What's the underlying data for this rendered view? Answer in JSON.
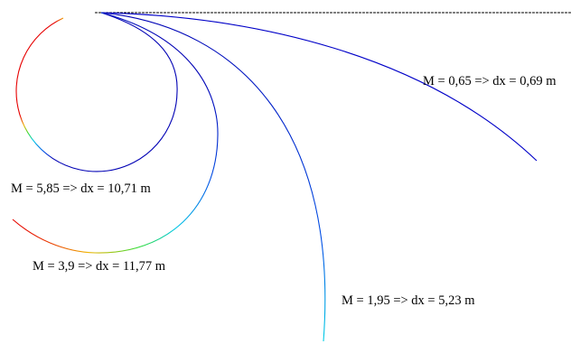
{
  "labels": {
    "curve_065": "M = 0,65 => dx = 0,69 m",
    "curve_585": "M = 5,85 => dx = 10,71 m",
    "curve_39": "M = 3,9 => dx = 11,77 m",
    "curve_195": "M = 1,95 => dx = 5,23 m"
  },
  "colors": {
    "background": "#ffffff",
    "ceiling_line": "#000000",
    "gradient": [
      "#0000b4",
      "#0050e6",
      "#00c8e6",
      "#32dc32",
      "#f0b400",
      "#e60000"
    ]
  }
}
